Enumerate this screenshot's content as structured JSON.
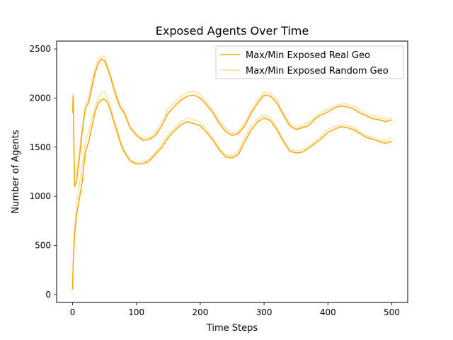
{
  "chart_data": {
    "type": "line",
    "title": "Exposed Agents Over Time",
    "xlabel": "Time Steps",
    "ylabel": "Number of Agents",
    "xlim": [
      -25,
      525
    ],
    "ylim": [
      -80,
      2580
    ],
    "xticks": [
      0,
      100,
      200,
      300,
      400,
      500
    ],
    "yticks": [
      0,
      500,
      1000,
      1500,
      2000,
      2500
    ],
    "grid": false,
    "legend_position": "top-right",
    "legend": [
      {
        "label": "Max/Min Exposed Real Geo",
        "color": "#ffa500",
        "opacity": 1.0
      },
      {
        "label": "Max/Min Exposed Random Geo",
        "color": "#ffa500",
        "opacity": 0.35
      }
    ],
    "series": [
      {
        "name": "Max/Min Exposed Real Geo",
        "role": "max",
        "color": "#ffa500",
        "opacity": 1.0,
        "x": [
          0,
          1,
          3,
          6,
          10,
          15,
          20,
          25,
          30,
          35,
          40,
          45,
          50,
          55,
          60,
          65,
          70,
          75,
          80,
          90,
          100,
          110,
          120,
          130,
          140,
          150,
          160,
          170,
          180,
          190,
          200,
          210,
          220,
          230,
          240,
          250,
          260,
          270,
          280,
          290,
          300,
          310,
          320,
          330,
          340,
          350,
          360,
          370,
          380,
          390,
          400,
          410,
          420,
          430,
          440,
          450,
          460,
          470,
          480,
          490,
          500
        ],
        "y": [
          1850,
          2020,
          1100,
          1150,
          1350,
          1650,
          1900,
          1950,
          2100,
          2250,
          2350,
          2400,
          2380,
          2300,
          2200,
          2080,
          1980,
          1900,
          1860,
          1700,
          1620,
          1570,
          1580,
          1620,
          1720,
          1850,
          1920,
          1980,
          2020,
          2030,
          2000,
          1930,
          1850,
          1740,
          1660,
          1620,
          1640,
          1720,
          1850,
          1950,
          2030,
          2020,
          1950,
          1830,
          1720,
          1680,
          1700,
          1720,
          1790,
          1830,
          1860,
          1900,
          1920,
          1910,
          1890,
          1850,
          1820,
          1790,
          1780,
          1760,
          1780
        ]
      },
      {
        "name": "Max/Min Exposed Real Geo",
        "role": "min",
        "color": "#ffa500",
        "opacity": 1.0,
        "x": [
          0,
          1,
          3,
          6,
          10,
          15,
          20,
          25,
          30,
          35,
          40,
          45,
          50,
          55,
          60,
          65,
          70,
          75,
          80,
          90,
          100,
          110,
          120,
          130,
          140,
          150,
          160,
          170,
          180,
          190,
          200,
          210,
          220,
          230,
          240,
          250,
          260,
          270,
          280,
          290,
          300,
          310,
          320,
          330,
          340,
          350,
          360,
          370,
          380,
          390,
          400,
          410,
          420,
          430,
          440,
          450,
          460,
          470,
          480,
          490,
          500
        ],
        "y": [
          50,
          300,
          600,
          800,
          950,
          1150,
          1450,
          1550,
          1700,
          1850,
          1950,
          1980,
          1990,
          1950,
          1860,
          1750,
          1650,
          1540,
          1460,
          1360,
          1330,
          1330,
          1360,
          1430,
          1500,
          1600,
          1670,
          1730,
          1760,
          1740,
          1720,
          1650,
          1570,
          1470,
          1400,
          1390,
          1430,
          1560,
          1680,
          1760,
          1800,
          1770,
          1680,
          1560,
          1460,
          1440,
          1450,
          1490,
          1540,
          1590,
          1650,
          1680,
          1710,
          1700,
          1680,
          1640,
          1600,
          1580,
          1560,
          1540,
          1560
        ]
      },
      {
        "name": "Max/Min Exposed Random Geo",
        "role": "max",
        "color": "#ffa500",
        "opacity": 0.35,
        "x": [
          0,
          1,
          3,
          6,
          10,
          15,
          20,
          25,
          30,
          35,
          40,
          45,
          50,
          55,
          60,
          65,
          70,
          75,
          80,
          90,
          100,
          110,
          120,
          130,
          140,
          150,
          160,
          170,
          180,
          190,
          200,
          210,
          220,
          230,
          240,
          250,
          260,
          270,
          280,
          290,
          300,
          310,
          320,
          330,
          340,
          350,
          360,
          370,
          380,
          390,
          400,
          410,
          420,
          430,
          440,
          450,
          460,
          470,
          480,
          490,
          500
        ],
        "y": [
          1900,
          2050,
          1200,
          1250,
          1450,
          1700,
          1920,
          2000,
          2150,
          2300,
          2400,
          2430,
          2420,
          2330,
          2230,
          2120,
          2020,
          1930,
          1880,
          1710,
          1640,
          1590,
          1600,
          1650,
          1760,
          1890,
          1960,
          2020,
          2060,
          2070,
          2040,
          1960,
          1870,
          1770,
          1690,
          1640,
          1660,
          1750,
          1880,
          1980,
          2060,
          2050,
          1980,
          1860,
          1740,
          1700,
          1720,
          1750,
          1810,
          1860,
          1890,
          1920,
          1940,
          1940,
          1920,
          1880,
          1840,
          1820,
          1800,
          1790,
          1800
        ]
      },
      {
        "name": "Max/Min Exposed Random Geo",
        "role": "min",
        "color": "#ffa500",
        "opacity": 0.35,
        "x": [
          0,
          1,
          3,
          6,
          10,
          15,
          20,
          25,
          30,
          35,
          40,
          45,
          50,
          55,
          60,
          65,
          70,
          75,
          80,
          90,
          100,
          110,
          120,
          130,
          140,
          150,
          160,
          170,
          180,
          190,
          200,
          210,
          220,
          230,
          240,
          250,
          260,
          270,
          280,
          290,
          300,
          310,
          320,
          330,
          340,
          350,
          360,
          370,
          380,
          390,
          400,
          410,
          420,
          430,
          440,
          450,
          460,
          470,
          480,
          490,
          500
        ],
        "y": [
          80,
          350,
          700,
          900,
          1100,
          1300,
          1550,
          1650,
          1780,
          1900,
          2000,
          2050,
          2070,
          2000,
          1900,
          1780,
          1680,
          1570,
          1480,
          1380,
          1340,
          1350,
          1380,
          1450,
          1530,
          1630,
          1700,
          1760,
          1800,
          1780,
          1750,
          1680,
          1590,
          1490,
          1420,
          1410,
          1460,
          1600,
          1720,
          1790,
          1830,
          1800,
          1700,
          1580,
          1480,
          1460,
          1470,
          1510,
          1560,
          1620,
          1680,
          1710,
          1730,
          1720,
          1700,
          1660,
          1620,
          1600,
          1580,
          1560,
          1600
        ]
      }
    ]
  }
}
